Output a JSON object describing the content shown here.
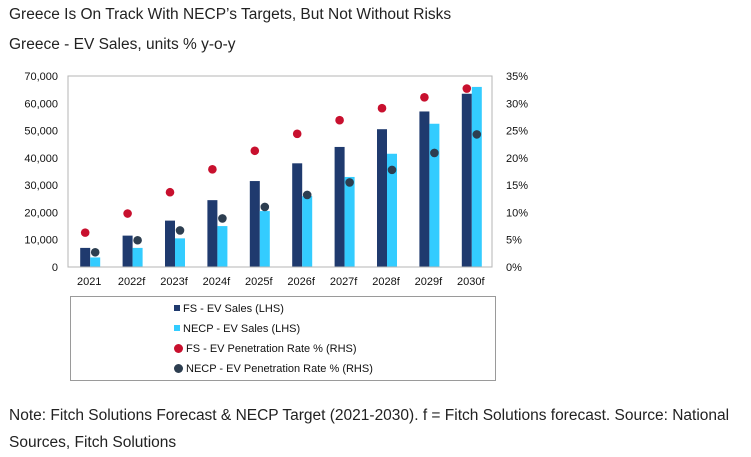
{
  "title": "Greece Is On Track With NECP’s Targets, But Not Without Risks",
  "subtitle": "Greece - EV Sales, units % y-o-y",
  "note": "Note: Fitch Solutions Forecast & NECP Target (2021-2030). f = Fitch Solutions forecast. Source: National Sources, Fitch Solutions",
  "colors": {
    "fs_sales": "#1F3A6E",
    "necp_sales": "#33CCFF",
    "fs_rate": "#C8102E",
    "necp_rate": "#2D3E50"
  },
  "chart_data": {
    "type": "bar",
    "categories": [
      "2021",
      "2022f",
      "2023f",
      "2024f",
      "2025f",
      "2026f",
      "2027f",
      "2028f",
      "2029f",
      "2030f"
    ],
    "left_axis": {
      "min": 0,
      "max": 70000,
      "ticks": [
        "0",
        "10,000",
        "20,000",
        "30,000",
        "40,000",
        "50,000",
        "60,000",
        "70,000"
      ]
    },
    "right_axis": {
      "min": 0,
      "max": 35,
      "ticks": [
        "0%",
        "5%",
        "10%",
        "15%",
        "20%",
        "25%",
        "30%",
        "35%"
      ]
    },
    "series": [
      {
        "name": "FS - EV Sales (LHS)",
        "kind": "bar",
        "axis": "left",
        "values": [
          7000,
          11500,
          17000,
          24500,
          31500,
          38000,
          44000,
          50500,
          57000,
          63500
        ]
      },
      {
        "name": "NECP - EV Sales (LHS)",
        "kind": "bar",
        "axis": "left",
        "values": [
          3500,
          7000,
          10500,
          15000,
          20500,
          26000,
          33000,
          41500,
          52500,
          66000
        ]
      },
      {
        "name": "FS - EV Penetration Rate % (RHS)",
        "kind": "dot",
        "axis": "right",
        "values": [
          6.3,
          9.8,
          13.7,
          17.9,
          21.3,
          24.4,
          26.9,
          29.1,
          31.1,
          32.7
        ]
      },
      {
        "name": "NECP - EV Penetration Rate % (RHS)",
        "kind": "dot",
        "axis": "right",
        "values": [
          2.7,
          4.9,
          6.7,
          8.9,
          11.0,
          13.2,
          15.5,
          17.8,
          20.9,
          24.3
        ]
      }
    ]
  }
}
